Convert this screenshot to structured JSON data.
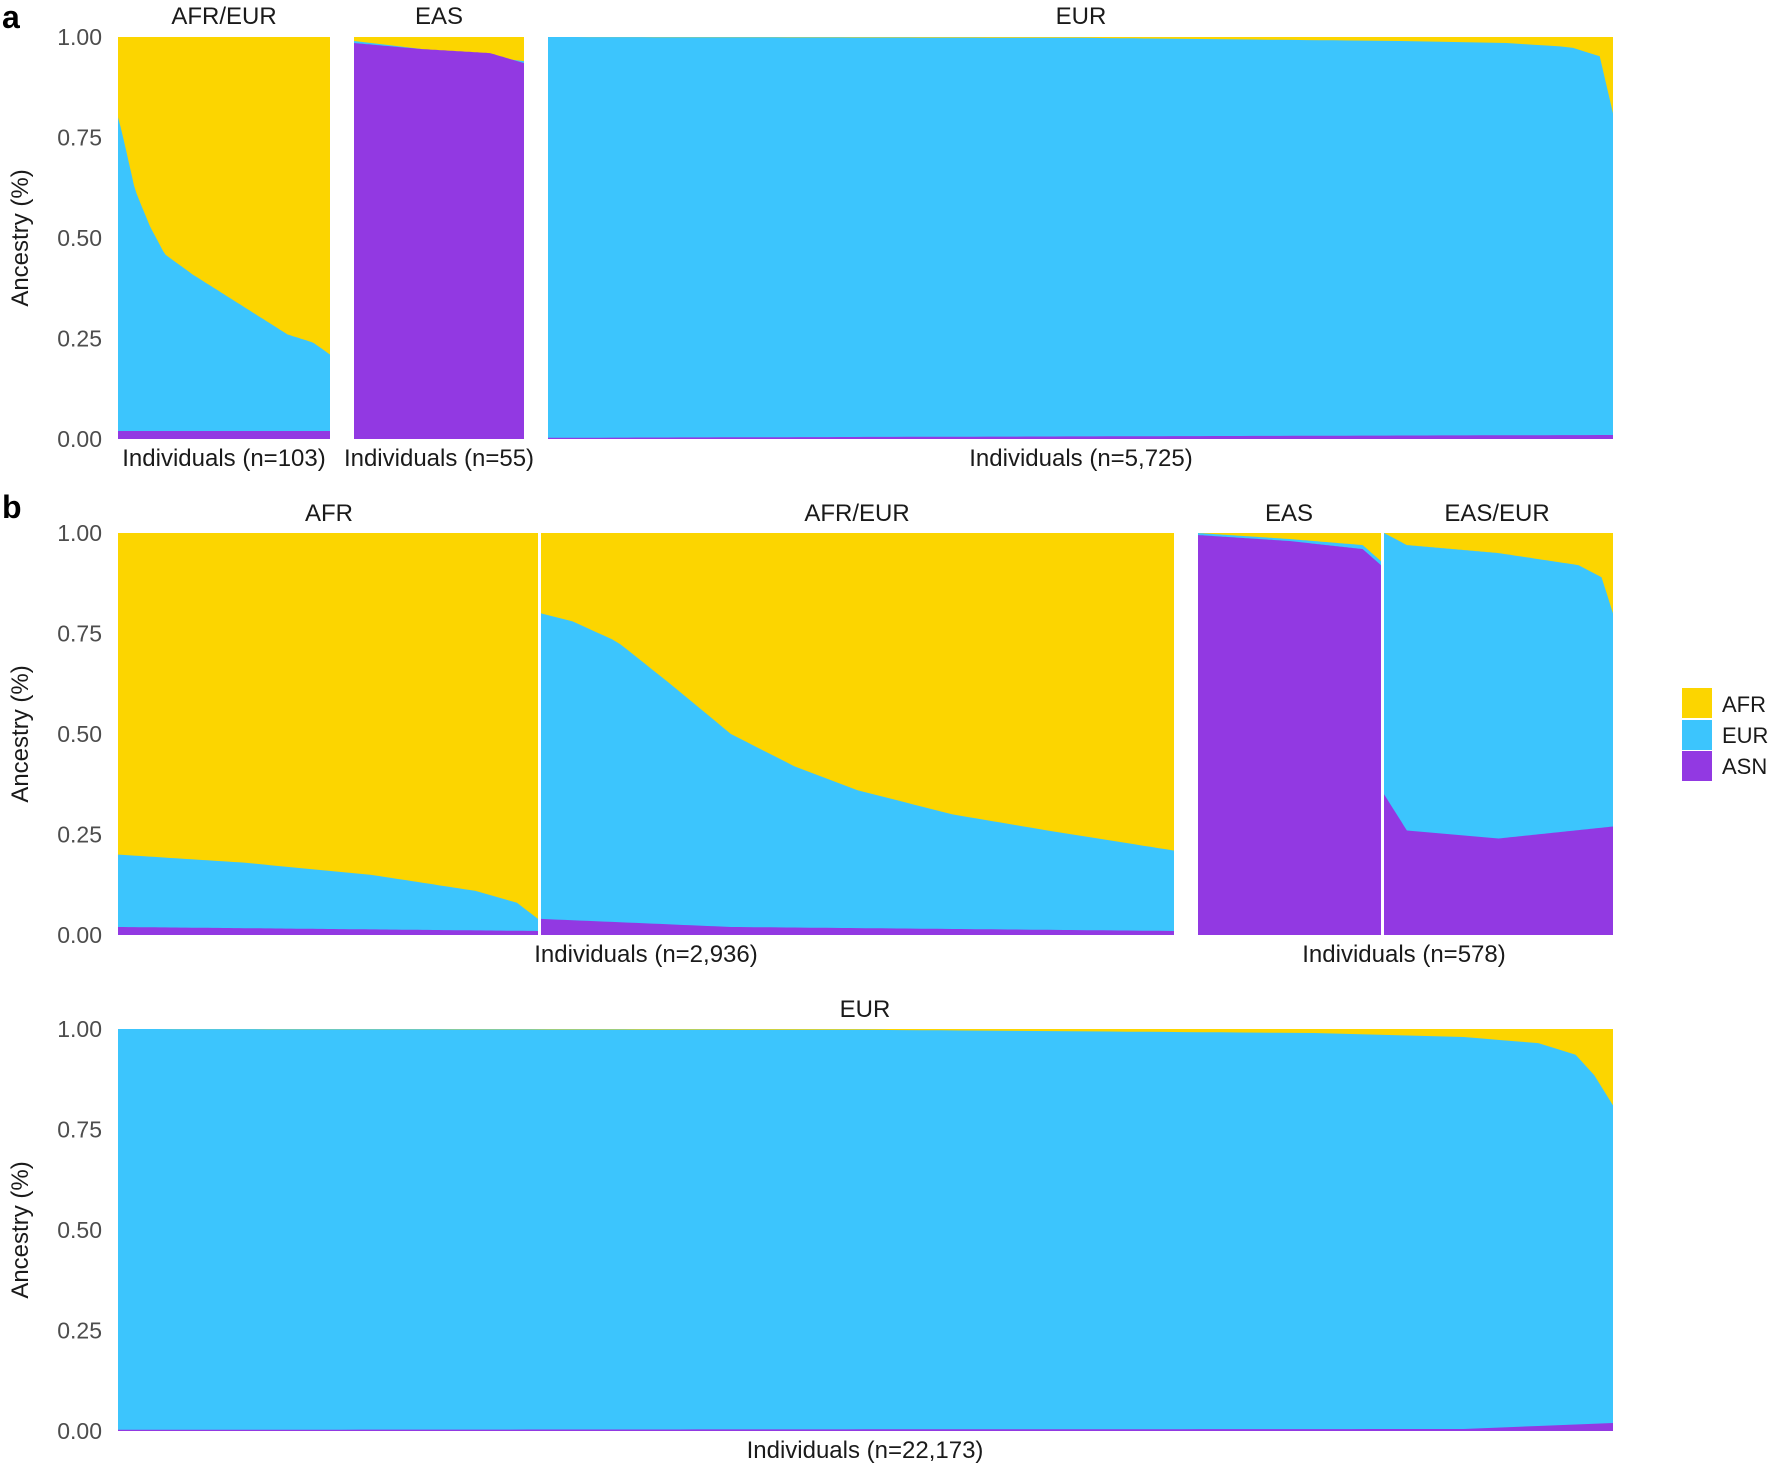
{
  "colors": {
    "AFR": "#FCD500",
    "EUR": "#3CC5FD",
    "ASN": "#9239E2"
  },
  "legend": {
    "items": [
      {
        "label": "AFR",
        "key": "AFR"
      },
      {
        "label": "EUR",
        "key": "EUR"
      },
      {
        "label": "ASN",
        "key": "ASN"
      }
    ]
  },
  "chart_data": [
    {
      "panel": "a",
      "type": "stacked-area",
      "series_order": [
        "ASN",
        "EUR",
        "AFR"
      ],
      "ylabel": "Ancestry (%)",
      "yticks": [
        "0.00",
        "0.25",
        "0.50",
        "0.75",
        "1.00"
      ],
      "ylim": [
        0,
        1
      ],
      "groups": [
        {
          "title": "AFR/EUR",
          "xlabel": "Individuals (n=103)",
          "n": 103,
          "eur_top": [
            [
              0,
              0.8
            ],
            [
              0.02,
              0.76
            ],
            [
              0.08,
              0.62
            ],
            [
              0.15,
              0.53
            ],
            [
              0.22,
              0.46
            ],
            [
              0.35,
              0.41
            ],
            [
              0.5,
              0.36
            ],
            [
              0.65,
              0.31
            ],
            [
              0.8,
              0.26
            ],
            [
              0.92,
              0.24
            ],
            [
              1,
              0.21
            ]
          ],
          "asn_top": [
            [
              0,
              0.02
            ],
            [
              1,
              0.02
            ]
          ]
        },
        {
          "title": "EAS",
          "xlabel": "Individuals (n=55)",
          "n": 55,
          "eur_top": [
            [
              0,
              0.99
            ],
            [
              1,
              0.94
            ]
          ],
          "asn_top": [
            [
              0,
              0.985
            ],
            [
              0.4,
              0.97
            ],
            [
              0.8,
              0.96
            ],
            [
              1,
              0.935
            ]
          ]
        },
        {
          "title": "EUR",
          "xlabel": "Individuals (n=5,725)",
          "n": 5725,
          "eur_top": [
            [
              0,
              1.0
            ],
            [
              0.5,
              0.998
            ],
            [
              0.8,
              0.99
            ],
            [
              0.9,
              0.985
            ],
            [
              0.96,
              0.975
            ],
            [
              0.99,
              0.95
            ],
            [
              1,
              0.81
            ]
          ],
          "asn_top": [
            [
              0,
              0.003
            ],
            [
              1,
              0.01
            ]
          ]
        }
      ]
    },
    {
      "panel": "b",
      "type": "stacked-area",
      "series_order": [
        "ASN",
        "EUR",
        "AFR"
      ],
      "ylabel": "Ancestry (%)",
      "yticks": [
        "0.00",
        "0.25",
        "0.50",
        "0.75",
        "1.00"
      ],
      "ylim": [
        0,
        1
      ],
      "blocks": [
        {
          "xlabel": "Individuals (n=2,936)",
          "n": 2936,
          "groups": [
            {
              "title": "AFR",
              "eur_top": [
                [
                  0,
                  0.2
                ],
                [
                  0.3,
                  0.18
                ],
                [
                  0.6,
                  0.15
                ],
                [
                  0.85,
                  0.11
                ],
                [
                  0.95,
                  0.08
                ],
                [
                  1,
                  0.04
                ]
              ],
              "asn_top": [
                [
                  0,
                  0.02
                ],
                [
                  1,
                  0.01
                ]
              ]
            },
            {
              "title": "AFR/EUR",
              "eur_top": [
                [
                  0,
                  0.8
                ],
                [
                  0.05,
                  0.78
                ],
                [
                  0.12,
                  0.73
                ],
                [
                  0.2,
                  0.63
                ],
                [
                  0.3,
                  0.5
                ],
                [
                  0.4,
                  0.42
                ],
                [
                  0.5,
                  0.36
                ],
                [
                  0.65,
                  0.3
                ],
                [
                  0.8,
                  0.26
                ],
                [
                  1,
                  0.21
                ]
              ],
              "asn_top": [
                [
                  0,
                  0.04
                ],
                [
                  0.3,
                  0.02
                ],
                [
                  1,
                  0.01
                ]
              ]
            }
          ]
        },
        {
          "xlabel": "Individuals (n=578)",
          "n": 578,
          "groups": [
            {
              "title": "EAS",
              "eur_top": [
                [
                  0,
                  1.0
                ],
                [
                  0.5,
                  0.985
                ],
                [
                  0.9,
                  0.97
                ],
                [
                  1,
                  0.93
                ]
              ],
              "asn_top": [
                [
                  0,
                  0.995
                ],
                [
                  0.5,
                  0.98
                ],
                [
                  0.9,
                  0.96
                ],
                [
                  1,
                  0.92
                ]
              ]
            },
            {
              "title": "EAS/EUR",
              "eur_top": [
                [
                  0,
                  1.0
                ],
                [
                  0.1,
                  0.97
                ],
                [
                  0.5,
                  0.95
                ],
                [
                  0.85,
                  0.92
                ],
                [
                  0.95,
                  0.89
                ],
                [
                  1,
                  0.8
                ]
              ],
              "asn_top": [
                [
                  0,
                  0.35
                ],
                [
                  0.1,
                  0.26
                ],
                [
                  0.5,
                  0.24
                ],
                [
                  1,
                  0.27
                ]
              ]
            }
          ]
        }
      ]
    },
    {
      "panel": "b2",
      "type": "stacked-area",
      "series_order": [
        "ASN",
        "EUR",
        "AFR"
      ],
      "ylabel": "Ancestry (%)",
      "yticks": [
        "0.00",
        "0.25",
        "0.50",
        "0.75",
        "1.00"
      ],
      "ylim": [
        0,
        1
      ],
      "groups": [
        {
          "title": "EUR",
          "xlabel": "Individuals (n=22,173)",
          "n": 22173,
          "eur_top": [
            [
              0,
              1.0
            ],
            [
              0.5,
              0.998
            ],
            [
              0.8,
              0.99
            ],
            [
              0.9,
              0.98
            ],
            [
              0.95,
              0.965
            ],
            [
              0.98,
              0.93
            ],
            [
              1,
              0.81
            ]
          ],
          "asn_top": [
            [
              0,
              0.003
            ],
            [
              0.9,
              0.005
            ],
            [
              1,
              0.02
            ]
          ]
        }
      ]
    }
  ]
}
